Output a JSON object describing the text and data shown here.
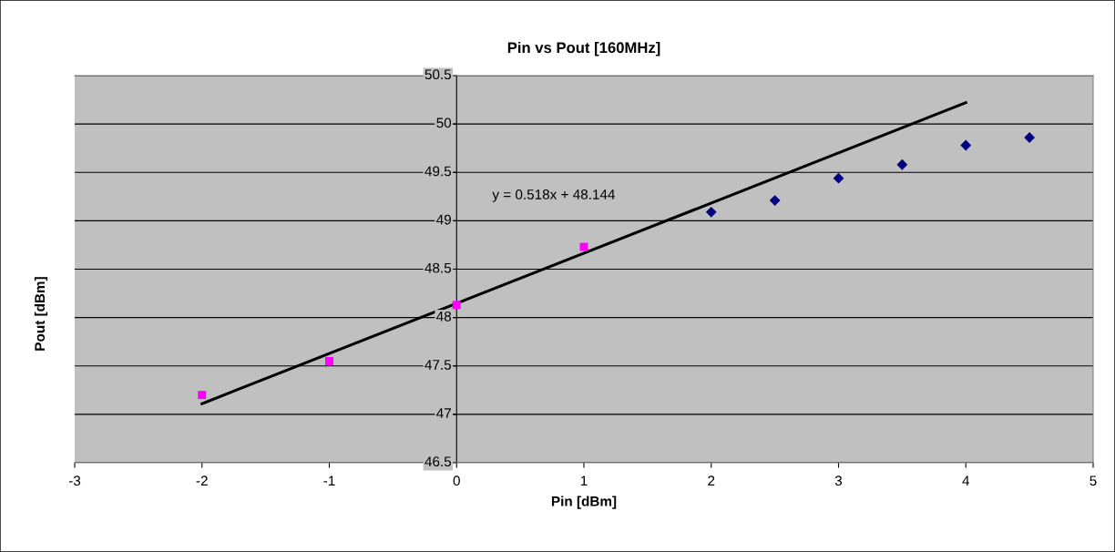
{
  "chart_data": {
    "type": "scatter",
    "title": "Pin vs Pout [160MHz]",
    "xlabel": "Pin [dBm]",
    "ylabel": "Pout [dBm]",
    "series": [
      {
        "color": "#ff00ff",
        "marker": "square",
        "x": [
          -2,
          -1,
          0,
          1
        ],
        "values": [
          47.2,
          47.55,
          48.13,
          48.73
        ]
      },
      {
        "color": "#000080",
        "marker": "diamond",
        "x": [
          2,
          2.5,
          3,
          3.5,
          4,
          4.5
        ],
        "values": [
          49.09,
          49.21,
          49.44,
          49.58,
          49.78,
          49.86
        ]
      },
      {
        "type": "line",
        "color": "#000000",
        "marker": "none",
        "x": [
          -2,
          4
        ],
        "values": [
          47.11,
          50.22
        ]
      }
    ],
    "annotations": [
      "y = 0.518x + 48.144"
    ],
    "xlim": [
      -3,
      5
    ],
    "xticks": [
      -3,
      -2,
      -1,
      0,
      1,
      2,
      3,
      4,
      5
    ],
    "ylim": [
      46.5,
      50.5
    ],
    "yticks": [
      46.5,
      47,
      47.5,
      48,
      48.5,
      49,
      49.5,
      50,
      50.5
    ],
    "grid": "y",
    "legend": false
  }
}
